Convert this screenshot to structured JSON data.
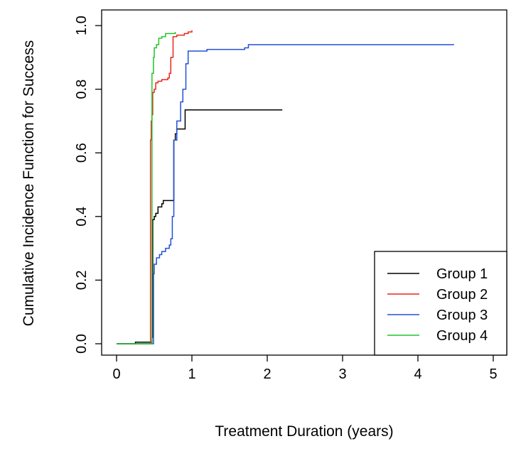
{
  "chart_data": {
    "type": "line",
    "title": "",
    "xlabel": "Treatment Duration (years)",
    "ylabel": "Cumulative Incidence Function for Success",
    "xlim": [
      0,
      5
    ],
    "ylim": [
      0,
      1
    ],
    "xticks": [
      0,
      1,
      2,
      3,
      4,
      5
    ],
    "yticks": [
      0.0,
      0.2,
      0.4,
      0.6,
      0.8,
      1.0
    ],
    "xtick_labels": [
      "0",
      "1",
      "2",
      "3",
      "4",
      "5"
    ],
    "ytick_labels": [
      "0.0",
      "0.2",
      "0.4",
      "0.6",
      "0.8",
      "1.0"
    ],
    "grid": false,
    "legend_position": "bottom-right",
    "step": true,
    "series": [
      {
        "name": "Group 1",
        "color": "#000000",
        "points": [
          [
            0,
            0
          ],
          [
            0.25,
            0.005
          ],
          [
            0.45,
            0.005
          ],
          [
            0.47,
            0.02
          ],
          [
            0.48,
            0.39
          ],
          [
            0.5,
            0.4
          ],
          [
            0.52,
            0.41
          ],
          [
            0.55,
            0.43
          ],
          [
            0.6,
            0.44
          ],
          [
            0.62,
            0.45
          ],
          [
            0.75,
            0.45
          ],
          [
            0.76,
            0.64
          ],
          [
            0.78,
            0.66
          ],
          [
            0.8,
            0.675
          ],
          [
            0.9,
            0.675
          ],
          [
            0.91,
            0.735
          ],
          [
            2.2,
            0.735
          ]
        ]
      },
      {
        "name": "Group 2",
        "color": "#e8261c",
        "points": [
          [
            0,
            0
          ],
          [
            0.44,
            0
          ],
          [
            0.45,
            0.64
          ],
          [
            0.46,
            0.7
          ],
          [
            0.47,
            0.72
          ],
          [
            0.48,
            0.79
          ],
          [
            0.5,
            0.8
          ],
          [
            0.52,
            0.82
          ],
          [
            0.55,
            0.825
          ],
          [
            0.6,
            0.83
          ],
          [
            0.65,
            0.83
          ],
          [
            0.68,
            0.835
          ],
          [
            0.7,
            0.85
          ],
          [
            0.72,
            0.9
          ],
          [
            0.75,
            0.965
          ],
          [
            0.8,
            0.97
          ],
          [
            0.9,
            0.975
          ],
          [
            0.95,
            0.98
          ],
          [
            1.0,
            0.985
          ]
        ]
      },
      {
        "name": "Group 3",
        "color": "#2050d8",
        "points": [
          [
            0,
            0
          ],
          [
            0.47,
            0
          ],
          [
            0.49,
            0.22
          ],
          [
            0.5,
            0.25
          ],
          [
            0.53,
            0.27
          ],
          [
            0.57,
            0.28
          ],
          [
            0.6,
            0.29
          ],
          [
            0.65,
            0.3
          ],
          [
            0.7,
            0.31
          ],
          [
            0.72,
            0.33
          ],
          [
            0.74,
            0.4
          ],
          [
            0.76,
            0.64
          ],
          [
            0.8,
            0.7
          ],
          [
            0.85,
            0.76
          ],
          [
            0.88,
            0.8
          ],
          [
            0.92,
            0.88
          ],
          [
            0.95,
            0.92
          ],
          [
            1.2,
            0.925
          ],
          [
            1.7,
            0.93
          ],
          [
            1.75,
            0.94
          ],
          [
            4.48,
            0.94
          ]
        ]
      },
      {
        "name": "Group 4",
        "color": "#22c42a",
        "points": [
          [
            0,
            0
          ],
          [
            0.46,
            0
          ],
          [
            0.47,
            0.85
          ],
          [
            0.49,
            0.9
          ],
          [
            0.5,
            0.93
          ],
          [
            0.53,
            0.94
          ],
          [
            0.56,
            0.96
          ],
          [
            0.6,
            0.965
          ],
          [
            0.65,
            0.975
          ],
          [
            0.78,
            0.98
          ]
        ]
      }
    ]
  }
}
